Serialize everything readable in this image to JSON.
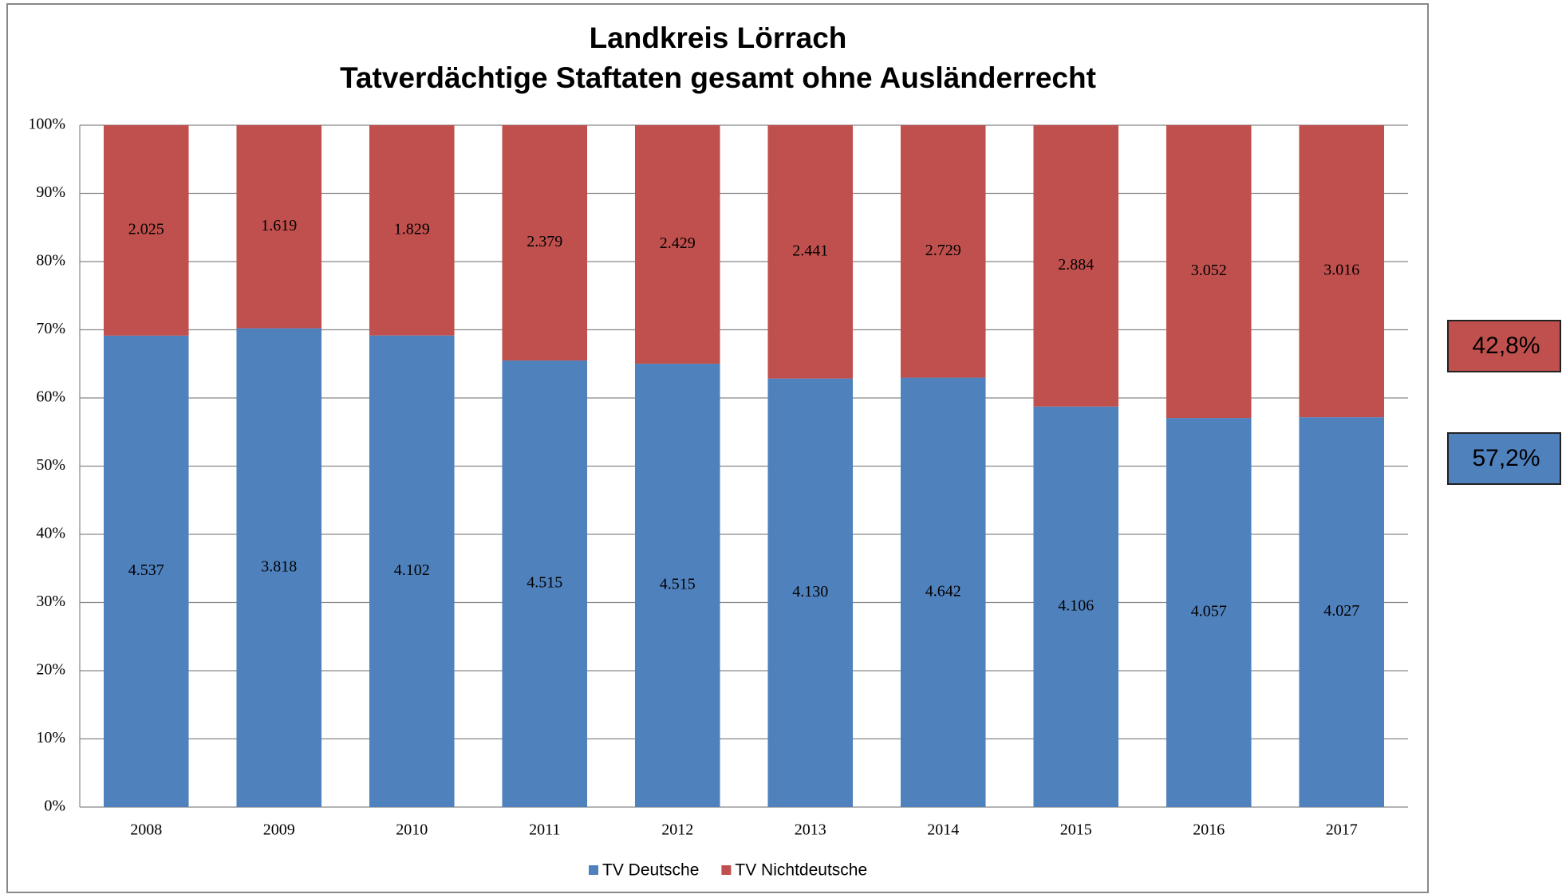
{
  "chart_data": {
    "type": "bar",
    "stacking": "percent",
    "title": [
      "Landkreis Lörrach",
      "Tatverdächtige Staftaten gesamt ohne Ausländerrecht"
    ],
    "categories": [
      "2008",
      "2009",
      "2010",
      "2011",
      "2012",
      "2013",
      "2014",
      "2015",
      "2016",
      "2017"
    ],
    "series": [
      {
        "name": "TV Deutsche",
        "color": "#4f81bd",
        "values": [
          4537,
          3818,
          4102,
          4515,
          4515,
          4130,
          4642,
          4106,
          4057,
          4027
        ],
        "value_labels": [
          "4.537",
          "3.818",
          "4.102",
          "4.515",
          "4.515",
          "4.130",
          "4.642",
          "4.106",
          "4.057",
          "4.027"
        ]
      },
      {
        "name": "TV Nichtdeutsche",
        "color": "#c0504d",
        "values": [
          2025,
          1619,
          1829,
          2379,
          2429,
          2441,
          2729,
          2884,
          3052,
          3016
        ],
        "value_labels": [
          "2.025",
          "1.619",
          "1.829",
          "2.379",
          "2.429",
          "2.441",
          "2.729",
          "2.884",
          "3.052",
          "3.016"
        ]
      }
    ],
    "ylim": [
      0,
      100
    ],
    "yticks": [
      {
        "value": 0,
        "label": "0%"
      },
      {
        "value": 10,
        "label": "10%"
      },
      {
        "value": 20,
        "label": "20%"
      },
      {
        "value": 30,
        "label": "30%"
      },
      {
        "value": 40,
        "label": "40%"
      },
      {
        "value": 50,
        "label": "50%"
      },
      {
        "value": 60,
        "label": "60%"
      },
      {
        "value": 70,
        "label": "70%"
      },
      {
        "value": 80,
        "label": "80%"
      },
      {
        "value": 90,
        "label": "90%"
      },
      {
        "value": 100,
        "label": "100%"
      }
    ],
    "grid": true,
    "legend": "bottom",
    "annotations": [
      {
        "text": "42,8%",
        "color": "#c0504d"
      },
      {
        "text": "57,2%",
        "color": "#4f81bd"
      }
    ]
  }
}
